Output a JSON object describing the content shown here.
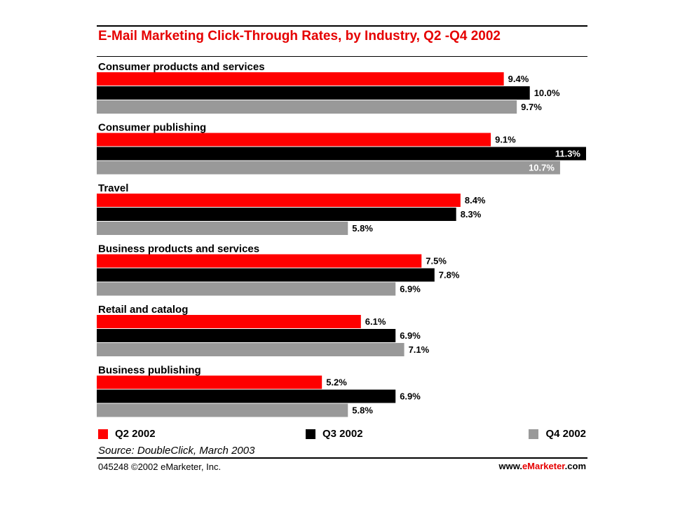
{
  "chart_data": {
    "type": "bar",
    "orientation": "horizontal",
    "title": "E-Mail Marketing Click-Through Rates, by Industry, Q2 -Q4 2002",
    "categories": [
      "Consumer products and services",
      "Consumer publishing",
      "Travel",
      "Business products and services",
      "Retail and catalog",
      "Business publishing"
    ],
    "series": [
      {
        "name": "Q2 2002",
        "color": "#ff0000",
        "values": [
          9.4,
          9.1,
          8.4,
          7.5,
          6.1,
          5.2
        ],
        "labels": [
          "9.4%",
          "9.1%",
          "8.4%",
          "7.5%",
          "6.1%",
          "5.2%"
        ]
      },
      {
        "name": "Q3 2002",
        "color": "#000000",
        "values": [
          10.0,
          11.3,
          8.3,
          7.8,
          6.9,
          6.9
        ],
        "labels": [
          "10.0%",
          "11.3%",
          "8.3%",
          "7.8%",
          "6.9%",
          "6.9%"
        ]
      },
      {
        "name": "Q4 2002",
        "color": "#999999",
        "values": [
          9.7,
          10.7,
          5.8,
          6.9,
          7.1,
          5.8
        ],
        "labels": [
          "9.7%",
          "10.7%",
          "5.8%",
          "6.9%",
          "7.1%",
          "5.8%"
        ]
      }
    ],
    "xlim": [
      0,
      11.3
    ],
    "grid": false,
    "legend_position": "bottom"
  },
  "source": "Source: DoubleClick, March 2003",
  "footer": {
    "id_copyright": "045248 ©2002 eMarketer, Inc.",
    "site_prefix": "www.",
    "site_brand": "eMarketer",
    "site_suffix": ".com"
  },
  "colors": {
    "accent": "#e50000"
  }
}
